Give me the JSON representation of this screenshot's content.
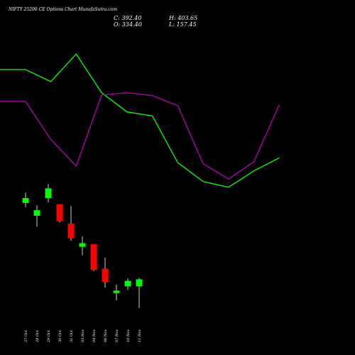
{
  "chart_data": {
    "type": "candlestick",
    "title": "NIFTY 25200 CE Options Chart MunafaSutra.com",
    "ohlc_readout": {
      "close": "C: 392.40",
      "high": "H: 403.65",
      "open": "O: 334.40",
      "low": "L: 157.45"
    },
    "categories": [
      "27 Oct",
      "28 Oct",
      "29 Oct",
      "30 Oct",
      "31 Oct",
      "03 Nov",
      "04 Nov",
      "06 Nov",
      "07 Nov",
      "10 Nov",
      "11 Nov"
    ],
    "candles": [
      {
        "date": "27 Oct",
        "open": 1020,
        "high": 1105,
        "low": 985,
        "close": 1060,
        "direction": "up"
      },
      {
        "date": "28 Oct",
        "open": 915,
        "high": 1000,
        "low": 825,
        "close": 960,
        "direction": "up"
      },
      {
        "date": "29 Oct",
        "open": 1060,
        "high": 1175,
        "low": 1025,
        "close": 1140,
        "direction": "up"
      },
      {
        "date": "30 Oct",
        "open": 1010,
        "high": 1010,
        "low": 860,
        "close": 870,
        "direction": "down"
      },
      {
        "date": "31 Oct",
        "open": 850,
        "high": 995,
        "low": 710,
        "close": 730,
        "direction": "down"
      },
      {
        "date": "03 Nov",
        "open": 690,
        "high": 745,
        "low": 590,
        "close": 660,
        "direction": "up"
      },
      {
        "date": "04 Nov",
        "open": 680,
        "high": 680,
        "low": 460,
        "close": 470,
        "direction": "down"
      },
      {
        "date": "06 Nov",
        "open": 480,
        "high": 570,
        "low": 325,
        "close": 370,
        "direction": "down"
      },
      {
        "date": "07 Nov",
        "open": 280,
        "high": 350,
        "low": 220,
        "close": 300,
        "direction": "up"
      },
      {
        "date": "10 Nov",
        "open": 335,
        "high": 400,
        "low": 305,
        "close": 380,
        "direction": "up"
      },
      {
        "date": "11 Nov",
        "open": 334.4,
        "high": 403.65,
        "low": 157.45,
        "close": 392.4,
        "direction": "up"
      }
    ],
    "overlay_lines": [
      {
        "color": "#00ff00",
        "values": [
          27.9,
          27.9,
          25.4,
          31.1,
          23.1,
          19.1,
          18.3,
          8.6,
          4.7,
          3.5,
          6.9,
          9.6
        ]
      },
      {
        "color": "#b000b0",
        "values": [
          21.3,
          21.3,
          13.4,
          7.9,
          22.6,
          23.1,
          22.5,
          20.4,
          8.4,
          5.2,
          8.8,
          20.6
        ]
      }
    ],
    "colors": {
      "background": "#000000",
      "up": "#00ff00",
      "down": "#ff0000",
      "wick": "#ffffff",
      "text": "#ffffff"
    },
    "grid": false,
    "legend": "none"
  }
}
